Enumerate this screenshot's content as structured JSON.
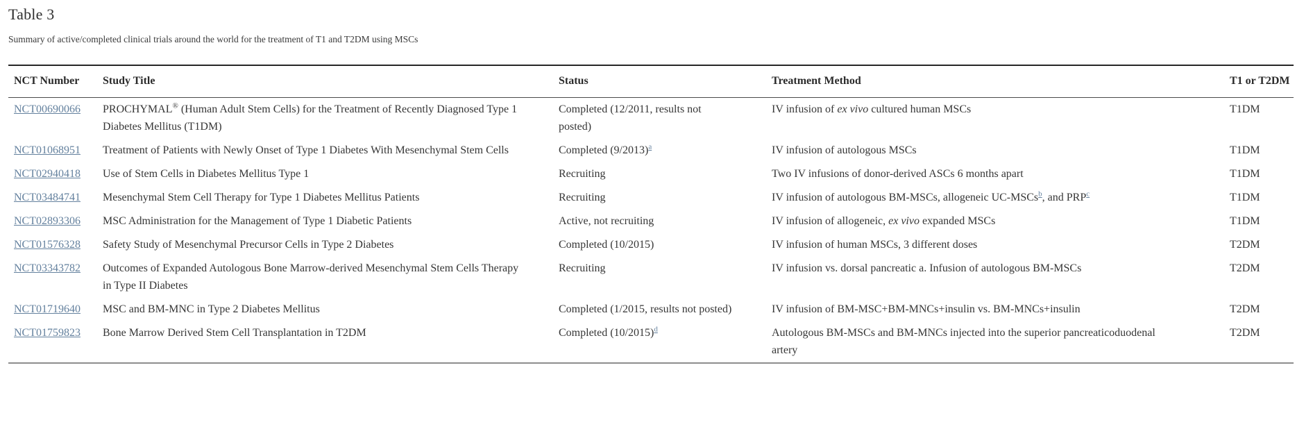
{
  "page": {
    "title": "Table 3",
    "subtitle": "Summary of active/completed clinical trials around the world for the treatment of T1 and T2DM using MSCs"
  },
  "colors": {
    "link": "#64819e",
    "text": "#363636",
    "rule_top": "#262626",
    "rule_header": "#4a4a4a",
    "rule_bottom": "#8d8d8d"
  },
  "table": {
    "columns": [
      "NCT Number",
      "Study Title",
      "Status",
      "Treatment Method",
      "T1 or T2DM"
    ],
    "rows": [
      {
        "nct": "NCT00690066",
        "title": [
          {
            "t": "PROCHYMAL"
          },
          {
            "t": "®",
            "sup": true
          },
          {
            "t": " (Human Adult Stem Cells) for the Treatment of Recently Diagnosed Type 1 Diabetes Mellitus (T1DM)"
          }
        ],
        "status": [
          {
            "t": "Completed (12/2011, results not posted)"
          }
        ],
        "treatment": [
          {
            "t": "IV infusion of "
          },
          {
            "t": "ex vivo",
            "i": true
          },
          {
            "t": " cultured human MSCs"
          }
        ],
        "type": "T1DM"
      },
      {
        "nct": "NCT01068951",
        "title": [
          {
            "t": "Treatment of Patients with Newly Onset of Type 1 Diabetes With Mesenchymal Stem Cells"
          }
        ],
        "status": [
          {
            "t": "Completed (9/2013)"
          },
          {
            "t": "a",
            "sup": true,
            "link": true
          }
        ],
        "treatment": [
          {
            "t": "IV infusion of autologous MSCs"
          }
        ],
        "type": "T1DM"
      },
      {
        "nct": "NCT02940418",
        "title": [
          {
            "t": "Use of Stem Cells in Diabetes Mellitus Type 1"
          }
        ],
        "status": [
          {
            "t": "Recruiting"
          }
        ],
        "treatment": [
          {
            "t": "Two IV infusions of donor-derived ASCs 6 months apart"
          }
        ],
        "type": "T1DM"
      },
      {
        "nct": "NCT03484741",
        "title": [
          {
            "t": "Mesenchymal Stem Cell Therapy for Type 1 Diabetes Mellitus Patients"
          }
        ],
        "status": [
          {
            "t": "Recruiting"
          }
        ],
        "treatment": [
          {
            "t": "IV infusion of autologous BM-MSCs, allogeneic UC-MSCs"
          },
          {
            "t": "b",
            "sup": true,
            "link": true
          },
          {
            "t": ", and PRP"
          },
          {
            "t": "c",
            "sup": true,
            "link": true
          }
        ],
        "type": "T1DM"
      },
      {
        "nct": "NCT02893306",
        "title": [
          {
            "t": "MSC Administration for the Management of Type 1 Diabetic Patients"
          }
        ],
        "status": [
          {
            "t": "Active, not recruiting"
          }
        ],
        "treatment": [
          {
            "t": "IV infusion of allogeneic, "
          },
          {
            "t": "ex vivo",
            "i": true
          },
          {
            "t": " expanded MSCs"
          }
        ],
        "type": "T1DM"
      },
      {
        "nct": "NCT01576328",
        "title": [
          {
            "t": "Safety Study of Mesenchymal Precursor Cells in Type 2 Diabetes"
          }
        ],
        "status": [
          {
            "t": "Completed (10/2015)"
          }
        ],
        "treatment": [
          {
            "t": "IV infusion of human MSCs, 3 different doses"
          }
        ],
        "type": "T2DM"
      },
      {
        "nct": "NCT03343782",
        "title": [
          {
            "t": "Outcomes of Expanded Autologous Bone Marrow-derived Mesenchymal Stem Cells Therapy in Type II Diabetes"
          }
        ],
        "status": [
          {
            "t": "Recruiting"
          }
        ],
        "treatment": [
          {
            "t": "IV infusion vs. dorsal pancreatic a. Infusion of autologous BM-MSCs"
          }
        ],
        "type": "T2DM"
      },
      {
        "nct": "NCT01719640",
        "title": [
          {
            "t": "MSC and BM-MNC in Type 2 Diabetes Mellitus"
          }
        ],
        "status": [
          {
            "t": "Completed (1/2015, results not posted)"
          }
        ],
        "treatment": [
          {
            "t": "IV infusion of BM-MSC+BM-MNCs+insulin vs. BM-MNCs+insulin"
          }
        ],
        "type": "T2DM"
      },
      {
        "nct": "NCT01759823",
        "title": [
          {
            "t": "Bone Marrow Derived Stem Cell Transplantation in T2DM"
          }
        ],
        "status": [
          {
            "t": "Completed (10/2015)"
          },
          {
            "t": "d",
            "sup": true,
            "link": true
          }
        ],
        "treatment": [
          {
            "t": "Autologous BM-MSCs and BM-MNCs injected into the superior pancreaticoduodenal artery"
          }
        ],
        "type": "T2DM"
      }
    ]
  }
}
